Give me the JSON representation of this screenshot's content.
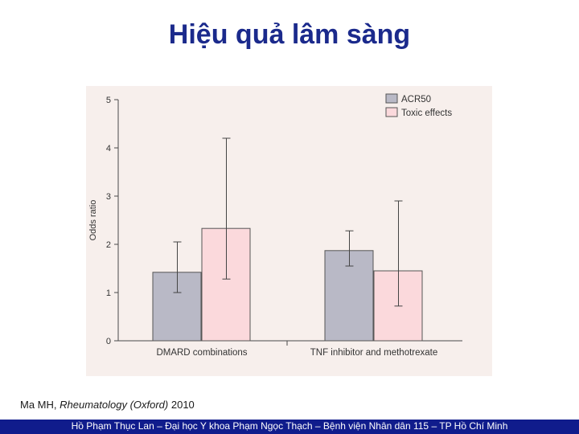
{
  "slide": {
    "title": "Hiệu quả lâm sàng",
    "citation": {
      "author": "Ma MH, ",
      "journal": "Rheumatology (Oxford)",
      "year": " 2010"
    },
    "footer": "Hồ Phạm Thục Lan – Đại học Y khoa Phạm Ngọc Thạch – Bệnh viện Nhân dân 115 – TP Hồ Chí Minh"
  },
  "chart_data": {
    "type": "bar",
    "title": "",
    "xlabel": "",
    "ylabel": "Odds ratio",
    "ylim": [
      0,
      5
    ],
    "yticks": [
      "0",
      "1",
      "2",
      "3",
      "4",
      "5"
    ],
    "categories": [
      "DMARD combinations",
      "TNF inhibitor and methotrexate"
    ],
    "series": [
      {
        "name": "ACR50",
        "color": "#b9b9c6",
        "values": [
          1.42,
          1.87
        ],
        "error_low": [
          1.0,
          1.55
        ],
        "error_high": [
          2.05,
          2.28
        ]
      },
      {
        "name": "Toxic effects",
        "color": "#fbd9dc",
        "values": [
          2.33,
          1.45
        ],
        "error_low": [
          1.28,
          0.72
        ],
        "error_high": [
          4.2,
          2.9
        ]
      }
    ],
    "legend_position": "top-right",
    "grid": false
  }
}
